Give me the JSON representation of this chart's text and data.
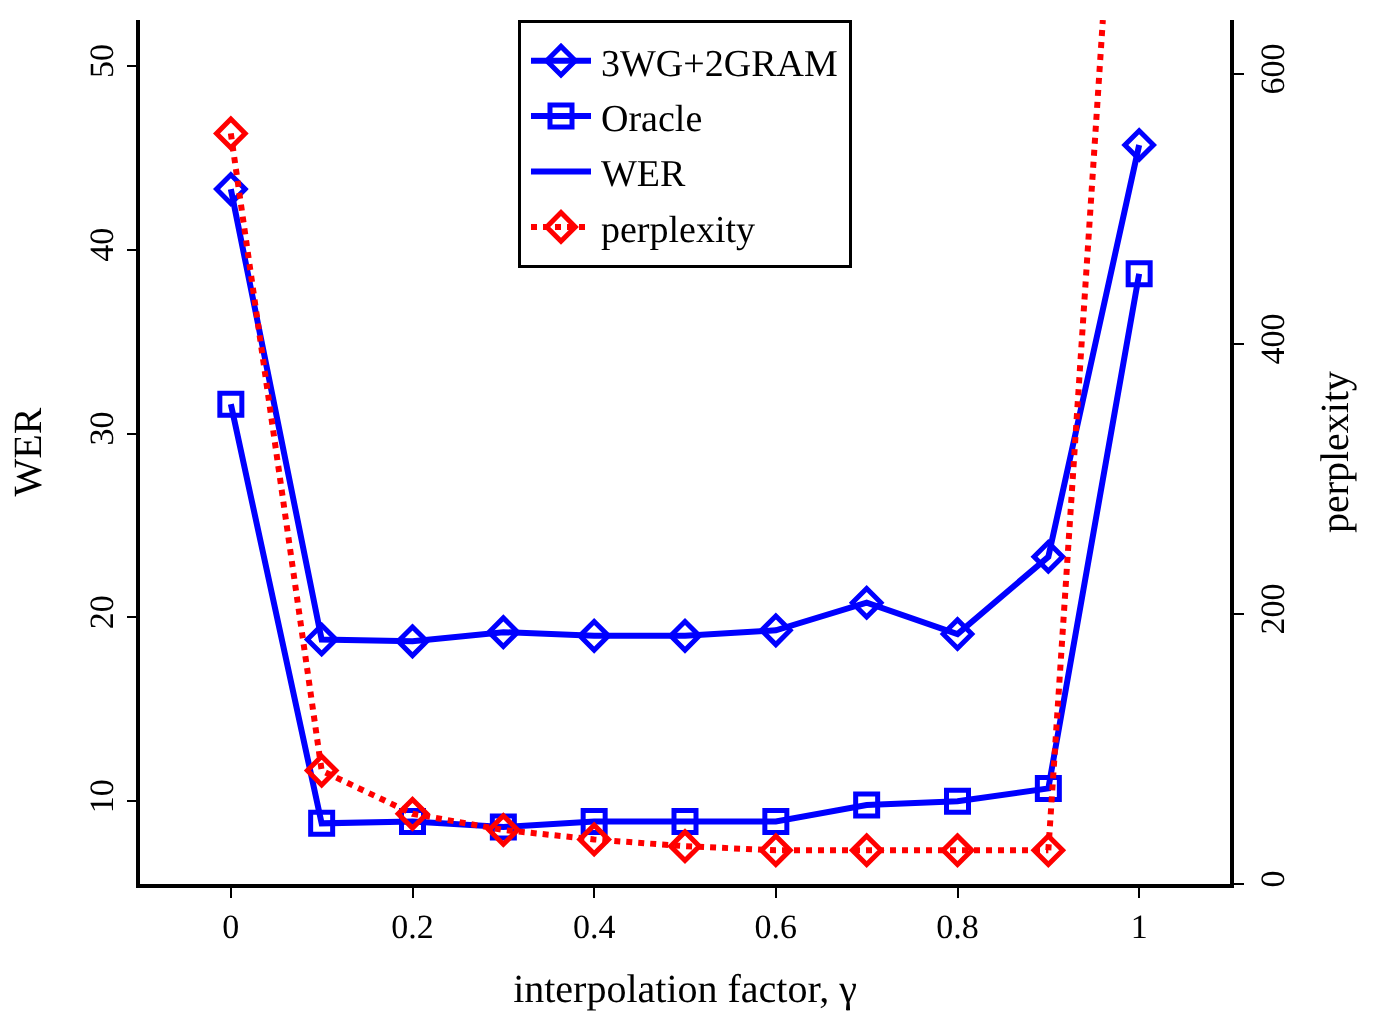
{
  "chart_data": {
    "type": "line",
    "xlabel": "interpolation factor, γ",
    "ylabel": "WER",
    "y2label": "perplexity",
    "x": [
      0,
      0.1,
      0.2,
      0.3,
      0.4,
      0.5,
      0.6,
      0.7,
      0.8,
      0.9,
      1
    ],
    "xlim": [
      -0.1,
      1.1
    ],
    "xticks": [
      0,
      0.2,
      0.4,
      0.6,
      0.8,
      1
    ],
    "ylim": [
      5.5,
      52.5
    ],
    "yticks": [
      10,
      20,
      30,
      40,
      50
    ],
    "y2lim": [
      0,
      640
    ],
    "y2ticks": [
      0,
      200,
      400,
      600
    ],
    "legend": "top",
    "series": [
      {
        "name": "3WG+2GRAM",
        "color": "#0000ff",
        "marker": "diamond",
        "line_style": "solid",
        "values": [
          43.3,
          18.8,
          18.7,
          19.2,
          19.0,
          19.0,
          19.3,
          20.8,
          19.1,
          23.3,
          45.7
        ]
      },
      {
        "name": "Oracle",
        "color": "#0000ff",
        "marker": "square",
        "line_style": "solid",
        "values": [
          31.6,
          8.8,
          8.9,
          8.6,
          8.9,
          8.9,
          8.9,
          9.8,
          10.0,
          10.7,
          38.7
        ]
      },
      {
        "name": "WER",
        "color": "#0000ff",
        "marker": "none",
        "line_style": "solid",
        "values": [
          null,
          null,
          null,
          null,
          null,
          null,
          null,
          null,
          null,
          null,
          null
        ]
      },
      {
        "name": "perplexity",
        "color": "#ff0000",
        "marker": "diamond",
        "line_style": "dotted",
        "axis": "y2",
        "x": [
          0,
          0.1,
          0.2,
          0.3,
          0.4,
          0.5,
          0.6,
          0.7,
          0.8,
          0.9
        ],
        "values": [
          556,
          84,
          52,
          40,
          33,
          28,
          25,
          25,
          25,
          25
        ]
      },
      {
        "color": "#ff0000",
        "marker": "none",
        "line_style": "dotted",
        "axis": "y2",
        "x": [
          0.9,
          0.96
        ],
        "values": [
          25,
          640
        ]
      }
    ]
  }
}
